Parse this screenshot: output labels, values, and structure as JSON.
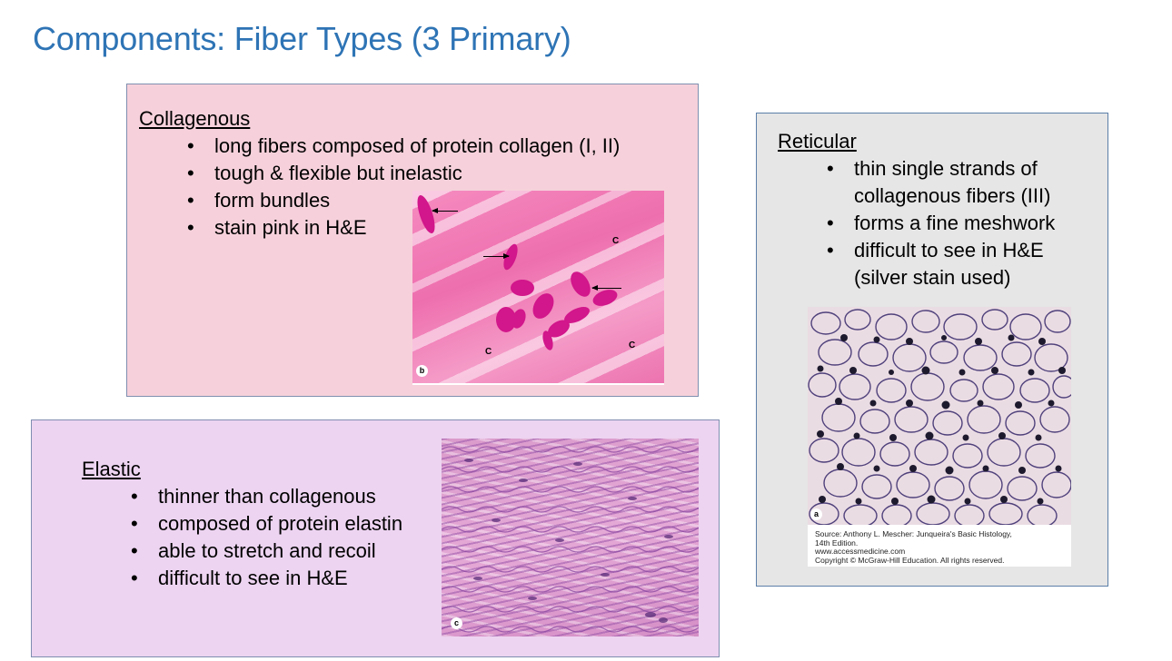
{
  "title": "Components: Fiber Types (3 Primary)",
  "collagenous": {
    "heading": "Collagenous",
    "bullets": [
      "long fibers composed of protein collagen (I, II)",
      "tough & flexible but inelastic",
      "form bundles",
      "stain pink in H&E"
    ],
    "image": {
      "labels": [
        "C",
        "C",
        "C"
      ],
      "corner_label": "b"
    }
  },
  "reticular": {
    "heading": "Reticular",
    "bullets": [
      "thin single strands of collagenous fibers (III)",
      "forms a fine meshwork",
      "difficult to see in H&E (silver stain used)"
    ],
    "image": {
      "corner_label": "a",
      "source_lines": [
        "Source: Anthony L. Mescher: Junqueira's Basic Histology,",
        "14th Edition.",
        "www.accessmedicine.com",
        "Copyright © McGraw-Hill Education. All rights reserved."
      ]
    }
  },
  "elastic": {
    "heading": "Elastic",
    "bullets": [
      "thinner than collagenous",
      "composed of protein elastin",
      "able to stretch and recoil",
      "difficult to see in H&E"
    ],
    "image": {
      "corner_label": "c"
    }
  },
  "colors": {
    "title": "#2E74B5",
    "collagen_box": "#F6D1DB",
    "reticular_box": "#E6E6E6",
    "elastic_box": "#EDD4F1"
  }
}
